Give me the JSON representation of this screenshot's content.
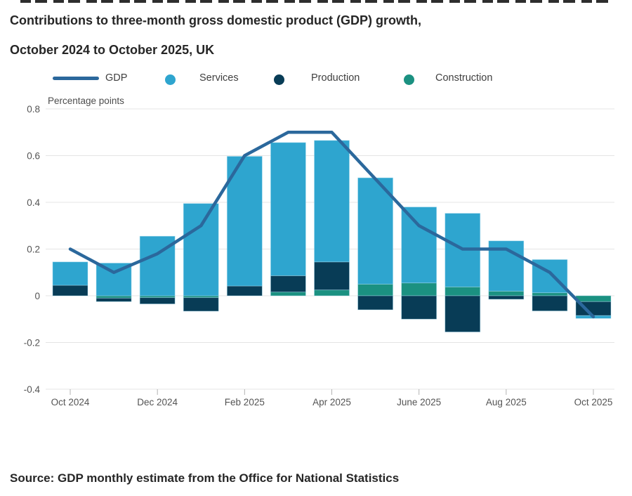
{
  "title": {
    "line1": "Contributions to three-month gross domestic product (GDP) growth,",
    "line2": "October 2024 to October 2025, UK"
  },
  "legend": [
    {
      "label": "GDP",
      "type": "line",
      "color": "#2B689C"
    },
    {
      "label": "Services",
      "type": "dot",
      "color": "#2EA5CF"
    },
    {
      "label": "Production",
      "type": "dot",
      "color": "#083C56"
    },
    {
      "label": "Construction",
      "type": "dot",
      "color": "#1B9181"
    }
  ],
  "axis_label": "Percentage points",
  "source": {
    "text": "Source: GDP monthly estimate from the Office for National Statistics"
  },
  "colors": {
    "gdp_line": "#2B689C",
    "services": "#2EA5CF",
    "production": "#083C56",
    "construction": "#1B9181",
    "gridline": "#e4e4e4",
    "tick_text": "#545454"
  },
  "chart_data": {
    "type": "bar",
    "subtype": "stacked-bar-with-line-overlay",
    "title": "Contributions to three-month gross domestic product (GDP) growth, October 2024 to October 2025, UK",
    "xlabel": "",
    "ylabel": "Percentage points",
    "ylim": [
      -0.4,
      0.8
    ],
    "yticks": [
      0.8,
      0.6,
      0.4,
      0.2,
      0,
      -0.2,
      -0.4
    ],
    "grid": true,
    "legend_position": "top",
    "categories": [
      "Oct 2024",
      "Nov 2024",
      "Dec 2024",
      "Jan 2025",
      "Feb 2025",
      "Mar 2025",
      "Apr 2025",
      "May 2025",
      "Jun 2025",
      "Jul 2025",
      "Aug 2025",
      "Sep 2025",
      "Oct 2025"
    ],
    "xtick_labels": [
      {
        "index": 0,
        "label": "Oct 2024"
      },
      {
        "index": 2,
        "label": "Dec 2024"
      },
      {
        "index": 4,
        "label": "Feb 2025"
      },
      {
        "index": 6,
        "label": "Apr 2025"
      },
      {
        "index": 8,
        "label": "June 2025"
      },
      {
        "index": 10,
        "label": "Aug 2025"
      },
      {
        "index": 12,
        "label": "Oct 2025"
      }
    ],
    "stack_order": [
      "Construction",
      "Production",
      "Services"
    ],
    "series": [
      {
        "name": "Services",
        "color": "#2EA5CF",
        "values": [
          0.1,
          0.14,
          0.255,
          0.395,
          0.555,
          0.57,
          0.52,
          0.455,
          0.325,
          0.315,
          0.215,
          0.142,
          -0.012
        ]
      },
      {
        "name": "Production",
        "color": "#083C56",
        "values": [
          0.045,
          -0.015,
          -0.027,
          -0.058,
          0.042,
          0.07,
          0.12,
          -0.06,
          -0.1,
          -0.155,
          -0.015,
          -0.065,
          -0.06
        ]
      },
      {
        "name": "Construction",
        "color": "#1B9181",
        "values": [
          0,
          -0.01,
          -0.008,
          -0.008,
          0,
          0.016,
          0.025,
          0.05,
          0.055,
          0.038,
          0.02,
          0.013,
          -0.025
        ]
      }
    ],
    "line_series": {
      "name": "GDP",
      "color": "#2B689C",
      "values": [
        0.2,
        0.1,
        0.18,
        0.3,
        0.6,
        0.7,
        0.7,
        0.5,
        0.3,
        0.2,
        0.2,
        0.1,
        -0.09
      ]
    }
  }
}
